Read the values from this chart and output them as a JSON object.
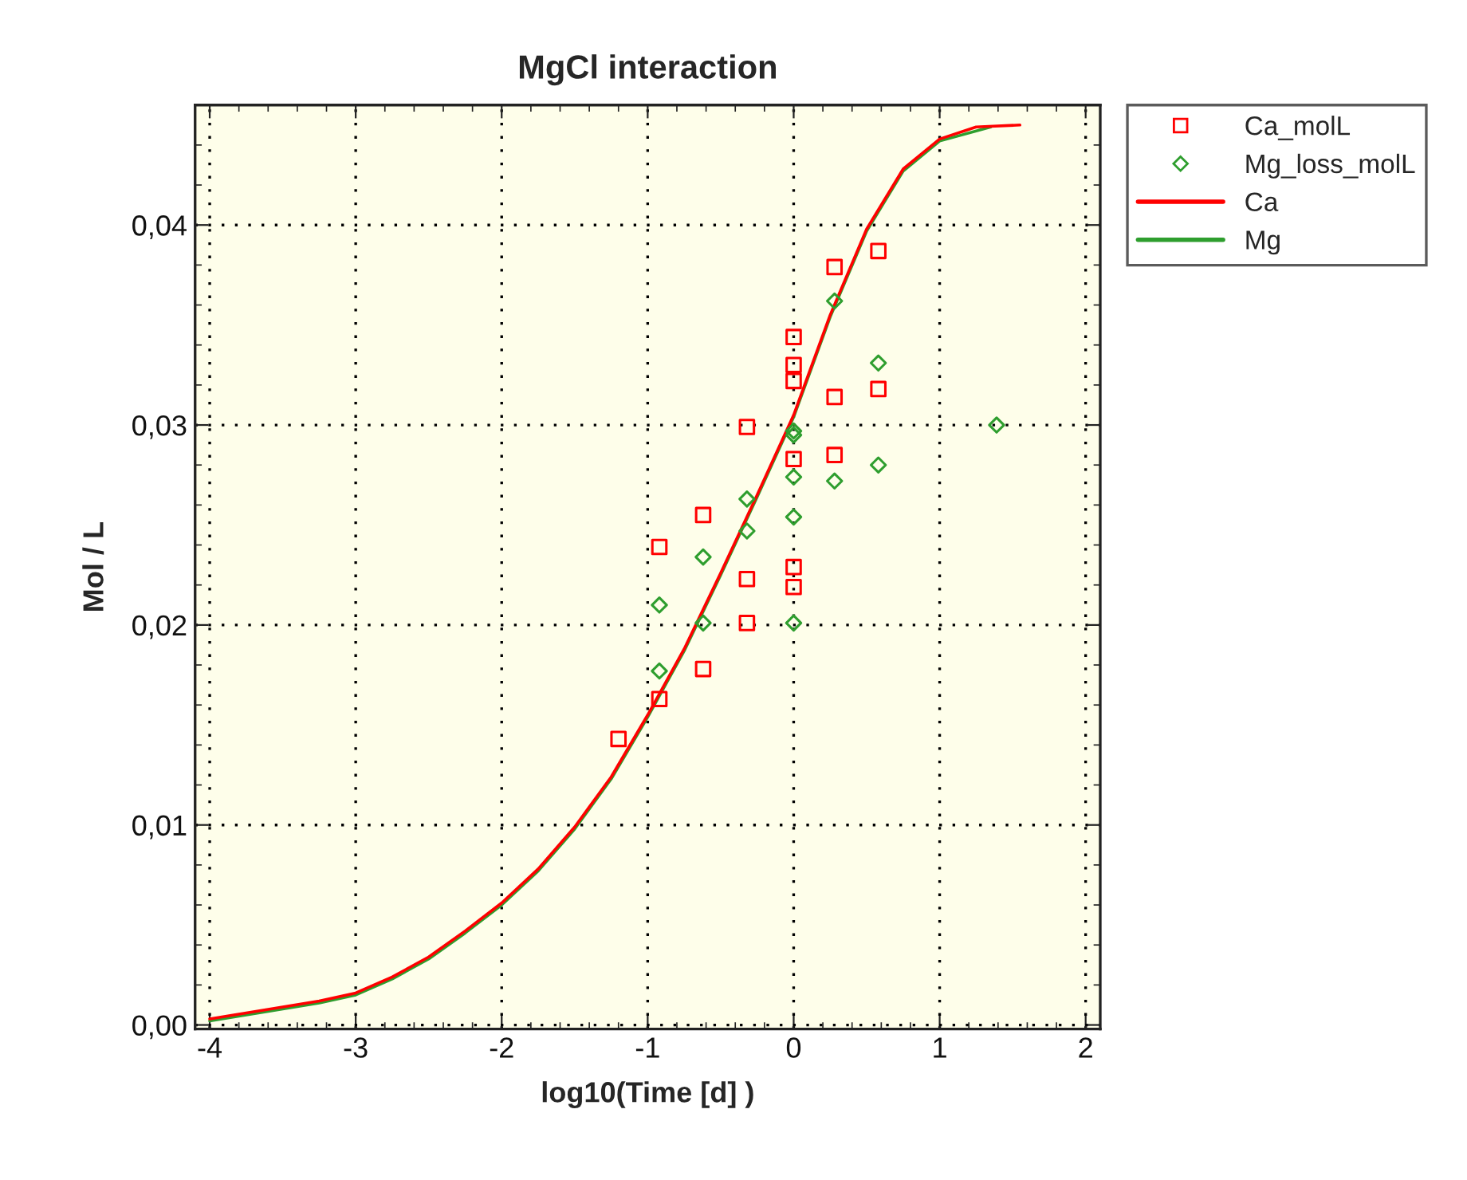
{
  "chart_data": {
    "type": "scatter",
    "title": "MgCl interaction",
    "xlabel": "log10(Time [d] )",
    "ylabel": "Mol / L",
    "xlim": [
      -4.1,
      2.1
    ],
    "ylim": [
      -0.0002,
      0.046
    ],
    "xticks": [
      {
        "value": -4,
        "label": "-4"
      },
      {
        "value": -3,
        "label": "-3"
      },
      {
        "value": -2,
        "label": "-2"
      },
      {
        "value": -1,
        "label": "-1"
      },
      0,
      1,
      2
    ],
    "yticks": [
      {
        "value": 0,
        "label": "0,00"
      },
      {
        "value": 0.01,
        "label": "0,01"
      },
      {
        "value": 0.02,
        "label": "0,02"
      },
      {
        "value": 0.03,
        "label": "0,03"
      },
      {
        "value": 0.04,
        "label": "0,04"
      }
    ],
    "grid": true,
    "legend": "top right",
    "series": [
      {
        "name": "Ca_molL",
        "marker": "square",
        "color": "#ff0000",
        "x": [
          -1.2,
          -0.92,
          -0.92,
          -0.62,
          -0.62,
          -0.32,
          -0.32,
          -0.32,
          0,
          0,
          0,
          0,
          0,
          0,
          0.28,
          0.28,
          0.28,
          0.58,
          0.58
        ],
        "values": [
          0.0143,
          0.0163,
          0.0239,
          0.0255,
          0.0178,
          0.0299,
          0.0223,
          0.0201,
          0.0344,
          0.033,
          0.0322,
          0.0283,
          0.0229,
          0.0219,
          0.0379,
          0.0314,
          0.0285,
          0.0387,
          0.0318
        ]
      },
      {
        "name": "Mg_loss_molL",
        "marker": "diamond",
        "color": "#2e9e2e",
        "x": [
          -0.92,
          -0.92,
          -0.62,
          -0.62,
          -0.32,
          -0.32,
          0,
          0,
          0,
          0,
          0,
          0.28,
          0.28,
          0.58,
          0.58,
          1.39
        ],
        "values": [
          0.021,
          0.0177,
          0.0234,
          0.0201,
          0.0263,
          0.0247,
          0.0297,
          0.0295,
          0.0274,
          0.0254,
          0.0201,
          0.0362,
          0.0272,
          0.0331,
          0.028,
          0.03
        ]
      },
      {
        "name": "Ca",
        "type": "line",
        "color": "#ff0000",
        "x": [
          -4.0,
          -3.75,
          -3.5,
          -3.25,
          -3.0,
          -2.75,
          -2.5,
          -2.25,
          -2.0,
          -1.75,
          -1.5,
          -1.25,
          -1.0,
          -0.75,
          -0.5,
          -0.25,
          0,
          0.25,
          0.5,
          0.75,
          1.0,
          1.25,
          1.55
        ],
        "values": [
          0.0003,
          0.0006,
          0.0009,
          0.0012,
          0.0016,
          0.0024,
          0.0034,
          0.0047,
          0.0061,
          0.0078,
          0.0099,
          0.0124,
          0.0155,
          0.0188,
          0.0226,
          0.0265,
          0.0305,
          0.0355,
          0.0398,
          0.0428,
          0.0443,
          0.0449,
          0.045
        ]
      },
      {
        "name": "Mg",
        "type": "line",
        "color": "#2e9e2e",
        "x": [
          -4.0,
          -3.75,
          -3.5,
          -3.25,
          -3.0,
          -2.75,
          -2.5,
          -2.25,
          -2.0,
          -1.75,
          -1.5,
          -1.25,
          -1.0,
          -0.75,
          -0.5,
          -0.25,
          0,
          0.25,
          0.5,
          0.75,
          1.0,
          1.35
        ],
        "values": [
          0.0002,
          0.0005,
          0.0008,
          0.0011,
          0.0015,
          0.0023,
          0.0033,
          0.0046,
          0.006,
          0.0077,
          0.0098,
          0.0123,
          0.0154,
          0.0187,
          0.0225,
          0.0264,
          0.0304,
          0.0354,
          0.0397,
          0.0427,
          0.0442,
          0.0449
        ]
      }
    ]
  }
}
